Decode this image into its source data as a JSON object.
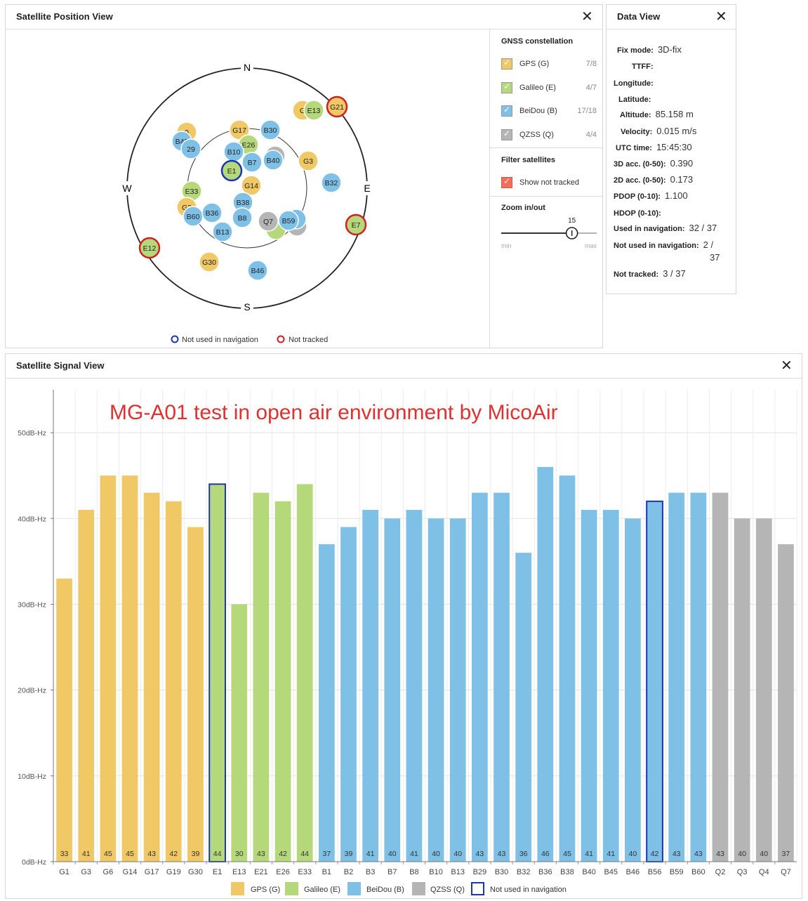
{
  "position_view": {
    "title": "Satellite Position View",
    "close_symbol": "✕",
    "compass": {
      "n": "N",
      "s": "S",
      "e": "E",
      "w": "W"
    },
    "legend": {
      "not_used": "Not used in navigation",
      "not_tracked": "Not tracked"
    },
    "satellites": [
      {
        "id": "G19a",
        "label": "9",
        "system": "G",
        "status": "used"
      },
      {
        "id": "B45",
        "label": "B45",
        "system": "B",
        "status": "used"
      },
      {
        "id": "B29",
        "label": "29",
        "system": "B",
        "status": "used"
      },
      {
        "id": "G17",
        "label": "G17",
        "system": "G",
        "status": "used"
      },
      {
        "id": "E26",
        "label": "E26",
        "system": "E",
        "status": "used"
      },
      {
        "id": "B30",
        "label": "B30",
        "system": "B",
        "status": "used"
      },
      {
        "id": "Q2",
        "label": "",
        "system": "Q",
        "status": "used"
      },
      {
        "id": "B10",
        "label": "B10",
        "system": "B",
        "status": "used"
      },
      {
        "id": "B7",
        "label": "B7",
        "system": "B",
        "status": "used"
      },
      {
        "id": "B40",
        "label": "B40",
        "system": "B",
        "status": "used"
      },
      {
        "id": "E1",
        "label": "E1",
        "system": "E",
        "status": "not-used"
      },
      {
        "id": "G3",
        "label": "G3",
        "system": "G",
        "status": "used"
      },
      {
        "id": "G6",
        "label": "G",
        "system": "G",
        "status": "used"
      },
      {
        "id": "E13",
        "label": "E13",
        "system": "E",
        "status": "used"
      },
      {
        "id": "G21",
        "label": "G21",
        "system": "G",
        "status": "not-tracked"
      },
      {
        "id": "B32",
        "label": "B32",
        "system": "B",
        "status": "used"
      },
      {
        "id": "E33",
        "label": "E33",
        "system": "E",
        "status": "used"
      },
      {
        "id": "G14",
        "label": "G14",
        "system": "G",
        "status": "used"
      },
      {
        "id": "G2x",
        "label": "G2",
        "system": "G",
        "status": "used"
      },
      {
        "id": "B38",
        "label": "B38",
        "system": "B",
        "status": "used"
      },
      {
        "id": "B60",
        "label": "B60",
        "system": "B",
        "status": "used"
      },
      {
        "id": "B36",
        "label": "B36",
        "system": "B",
        "status": "used"
      },
      {
        "id": "B8",
        "label": "B8",
        "system": "B",
        "status": "used"
      },
      {
        "id": "B13",
        "label": "B13",
        "system": "B",
        "status": "used"
      },
      {
        "id": "Q4",
        "label": "",
        "system": "Q",
        "status": "used"
      },
      {
        "id": "E21",
        "label": "",
        "system": "E",
        "status": "used"
      },
      {
        "id": "B2",
        "label": "",
        "system": "B",
        "status": "used"
      },
      {
        "id": "Q7",
        "label": "Q7",
        "system": "Q",
        "status": "used"
      },
      {
        "id": "B59",
        "label": "B59",
        "system": "B",
        "status": "used"
      },
      {
        "id": "E7",
        "label": "E7",
        "system": "E",
        "status": "not-tracked"
      },
      {
        "id": "E12",
        "label": "E12",
        "system": "E",
        "status": "not-tracked"
      },
      {
        "id": "G30",
        "label": "G30",
        "system": "G",
        "status": "used"
      },
      {
        "id": "B46",
        "label": "B46",
        "system": "B",
        "status": "used"
      }
    ]
  },
  "constellation": {
    "title": "GNSS constellation",
    "items": [
      {
        "label": "GPS (G)",
        "count": "7/8",
        "color": "#f0c866"
      },
      {
        "label": "Galileo (E)",
        "count": "4/7",
        "color": "#b5d97a"
      },
      {
        "label": "BeiDou (B)",
        "count": "17/18",
        "color": "#7fc0e6"
      },
      {
        "label": "QZSS (Q)",
        "count": "4/4",
        "color": "#b5b5b5"
      }
    ],
    "filter_title": "Filter satellites",
    "filter_label": "Show not tracked",
    "filter_color": "#f26d5b",
    "zoom_title": "Zoom in/out",
    "zoom_value": "15",
    "zoom_level": 0.74,
    "zoom_min": "min",
    "zoom_max": "max"
  },
  "data_view": {
    "title": "Data View",
    "fields": [
      {
        "label": "Fix mode:",
        "value": "3D-fix"
      },
      {
        "label": "TTFF:",
        "value": ""
      },
      {
        "label": "Longitude:",
        "value": ""
      },
      {
        "label": "Latitude:",
        "value": ""
      },
      {
        "label": "Altitude:",
        "value": "85.158 m"
      },
      {
        "label": "Velocity:",
        "value": "0.015 m/s"
      },
      {
        "label": "UTC time:",
        "value": "15:45:30"
      },
      {
        "label": "3D acc. (0-50):",
        "value": "0.390"
      },
      {
        "label": "2D acc. (0-50):",
        "value": "0.173"
      },
      {
        "label": "PDOP (0-10):",
        "value": "1.100"
      },
      {
        "label": "HDOP (0-10):",
        "value": ""
      },
      {
        "label": "Used in navigation:",
        "value": "32 / 37"
      },
      {
        "label": "Not used in navigation:",
        "value": "2 /"
      },
      {
        "label": "",
        "value": "37"
      },
      {
        "label": "Not tracked:",
        "value": "3 / 37"
      }
    ]
  },
  "signal_view": {
    "title": "Satellite Signal View",
    "annotation": "MG-A01 test in open air environment by MicoAir",
    "legend": {
      "gps": "GPS (G)",
      "galileo": "Galileo (E)",
      "beidou": "BeiDou (B)",
      "qzss": "QZSS (Q)",
      "not_used": "Not used in navigation"
    }
  },
  "colors": {
    "G": "#f0c866",
    "E": "#b5d97a",
    "B": "#7fc0e6",
    "Q": "#b5b5b5",
    "not_used": "#1c36b3",
    "not_tracked": "#d21f1f",
    "annotation": "#e03030"
  },
  "chart_data": {
    "type": "bar",
    "title": "Satellite Signal View",
    "ylabel": "dB-Hz",
    "ylim": [
      0,
      55
    ],
    "yticks": [
      0,
      10,
      20,
      30,
      40,
      50
    ],
    "ytick_labels": [
      "0dB-Hz",
      "10dB-Hz",
      "20dB-Hz",
      "30dB-Hz",
      "40dB-Hz",
      "50dB-Hz"
    ],
    "categories": [
      "G1",
      "G3",
      "G6",
      "G14",
      "G17",
      "G19",
      "G30",
      "E1",
      "E13",
      "E21",
      "E26",
      "E33",
      "B1",
      "B2",
      "B3",
      "B7",
      "B8",
      "B10",
      "B13",
      "B29",
      "B30",
      "B32",
      "B36",
      "B38",
      "B40",
      "B45",
      "B46",
      "B56",
      "B59",
      "B60",
      "Q2",
      "Q3",
      "Q4",
      "Q7"
    ],
    "values": [
      33,
      41,
      45,
      45,
      43,
      42,
      39,
      44,
      30,
      43,
      42,
      44,
      37,
      39,
      41,
      40,
      41,
      40,
      40,
      43,
      43,
      36,
      46,
      45,
      41,
      41,
      40,
      42,
      43,
      43,
      43,
      40,
      40,
      37
    ],
    "systems": [
      "G",
      "G",
      "G",
      "G",
      "G",
      "G",
      "G",
      "E",
      "E",
      "E",
      "E",
      "E",
      "B",
      "B",
      "B",
      "B",
      "B",
      "B",
      "B",
      "B",
      "B",
      "B",
      "B",
      "B",
      "B",
      "B",
      "B",
      "B",
      "B",
      "B",
      "Q",
      "Q",
      "Q",
      "Q"
    ],
    "not_used": [
      "E1",
      "B56"
    ]
  }
}
